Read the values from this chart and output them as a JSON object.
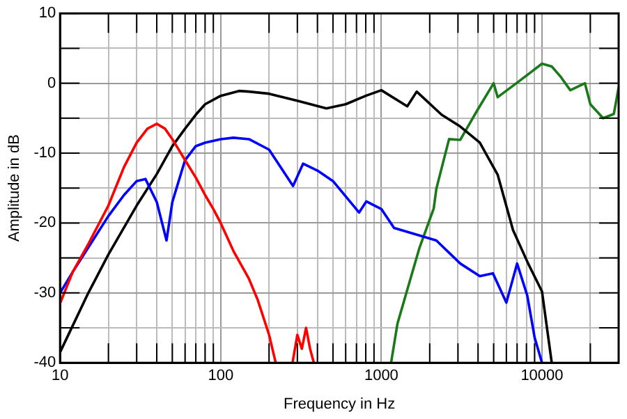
{
  "chart_data": {
    "type": "line",
    "xlabel": "Frequency in Hz",
    "ylabel": "Amplitude in dB",
    "log": "x",
    "grid": true,
    "legend": false,
    "marker": "none",
    "line_style": "solid",
    "xlim": [
      10,
      30000
    ],
    "ylim": [
      -40,
      10
    ],
    "xticks": [
      10,
      {
        "value": 20,
        "label": null
      },
      {
        "value": 30,
        "label": null
      },
      {
        "value": 40,
        "label": null
      },
      {
        "value": 50,
        "label": null
      },
      {
        "value": 60,
        "label": null
      },
      {
        "value": 70,
        "label": null
      },
      {
        "value": 80,
        "label": null
      },
      {
        "value": 90,
        "label": null
      },
      100,
      {
        "value": 200,
        "label": null
      },
      {
        "value": 300,
        "label": null
      },
      {
        "value": 400,
        "label": null
      },
      {
        "value": 500,
        "label": null
      },
      {
        "value": 600,
        "label": null
      },
      {
        "value": 700,
        "label": null
      },
      {
        "value": 800,
        "label": null
      },
      {
        "value": 900,
        "label": null
      },
      1000,
      {
        "value": 2000,
        "label": null
      },
      {
        "value": 3000,
        "label": null
      },
      {
        "value": 4000,
        "label": null
      },
      {
        "value": 5000,
        "label": null
      },
      {
        "value": 6000,
        "label": null
      },
      {
        "value": 7000,
        "label": null
      },
      {
        "value": 8000,
        "label": null
      },
      {
        "value": 9000,
        "label": null
      },
      10000,
      {
        "value": 20000,
        "label": null
      }
    ],
    "yticks": [
      -40,
      {
        "value": -35,
        "label": null
      },
      -30,
      {
        "value": -25,
        "label": null
      },
      -20,
      {
        "value": -15,
        "label": null
      },
      -10,
      {
        "value": -5,
        "label": null
      },
      0,
      {
        "value": 5,
        "label": null
      },
      10
    ],
    "series": [
      {
        "color": "#ff0000",
        "x": [
          10,
          12,
          15,
          20,
          25,
          30,
          35,
          40,
          45,
          50,
          60,
          70,
          80,
          90,
          100,
          120,
          150,
          170,
          200,
          220,
          250,
          280,
          300,
          320,
          340,
          360,
          380
        ],
        "values": [
          -31.5,
          -27,
          -23,
          -17.5,
          -12,
          -8.5,
          -6.5,
          -5.8,
          -6.5,
          -8,
          -11,
          -13.5,
          -16,
          -18,
          -20,
          -24,
          -28,
          -31,
          -36,
          -40,
          null,
          -40,
          -36,
          -38,
          -35,
          -38,
          -40
        ]
      },
      {
        "color": "#0000ff",
        "x": [
          10,
          12,
          15,
          20,
          25,
          30,
          34,
          40,
          46,
          50,
          60,
          70,
          80,
          100,
          120,
          150,
          200,
          282,
          326,
          400,
          500,
          727,
          807,
          1000,
          1200,
          2200,
          3100,
          4100,
          4950,
          6000,
          7000,
          8100,
          9000,
          10000
        ],
        "values": [
          -30,
          -27,
          -23.5,
          -19,
          -16,
          -14,
          -13.7,
          -17,
          -22.5,
          -17,
          -11,
          -9,
          -8.5,
          -8,
          -7.8,
          -8,
          -9.5,
          -14.7,
          -11.5,
          -12.5,
          -14,
          -18.5,
          -16.9,
          -18,
          -20.7,
          -22.5,
          -25.8,
          -27.6,
          -27.2,
          -31.4,
          -25.8,
          -30.4,
          -36.4,
          -40
        ]
      },
      {
        "color": "#000000",
        "x": [
          10,
          15,
          20,
          30,
          40,
          50,
          60,
          70,
          80,
          100,
          130,
          150,
          200,
          300,
          455,
          600,
          800,
          1000,
          1450,
          1660,
          2370,
          3100,
          4100,
          5300,
          6600,
          8200,
          10000,
          11500
        ],
        "values": [
          -38.5,
          -30,
          -24.5,
          -17.5,
          -13,
          -9,
          -6.5,
          -4.5,
          -3,
          -1.8,
          -1.1,
          -1.2,
          -1.5,
          -2.5,
          -3.6,
          -3,
          -1.8,
          -1,
          -3.3,
          -1.2,
          -4.5,
          -6.2,
          -8.5,
          -13.1,
          -21,
          -25.8,
          -29.8,
          -40
        ]
      },
      {
        "color": "#1a7a1a",
        "x": [
          1150,
          1260,
          1440,
          1730,
          2120,
          2200,
          2640,
          3100,
          3950,
          5000,
          5300,
          7300,
          10000,
          11500,
          13000,
          15000,
          18500,
          20000,
          24000,
          28000,
          30000
        ],
        "values": [
          -40,
          -34.4,
          -29.8,
          -23.5,
          -17.9,
          -15.1,
          -8,
          -8.1,
          -3.9,
          0,
          -2,
          0.4,
          2.8,
          2.4,
          1,
          -1,
          0,
          -3,
          -5,
          -4.4,
          -0.6
        ]
      }
    ]
  }
}
